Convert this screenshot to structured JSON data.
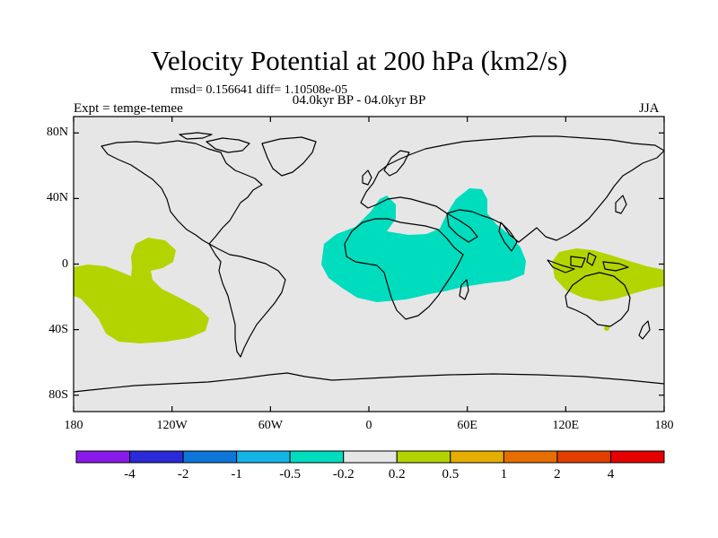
{
  "title": "Velocity Potential at 200 hPa (km2/s)",
  "stats": "rmsd= 0.156641 diff= 1.10508e-05",
  "period": "04.0kyr BP - 04.0kyr BP",
  "expt": "Expt = temge-temee",
  "season": "JJA",
  "map": {
    "lat_labels": [
      {
        "lat": 80,
        "text": "80N"
      },
      {
        "lat": 40,
        "text": "40N"
      },
      {
        "lat": 0,
        "text": "0"
      },
      {
        "lat": -40,
        "text": "40S"
      },
      {
        "lat": -80,
        "text": "80S"
      }
    ],
    "lon_labels": [
      {
        "lon": -180,
        "text": "180"
      },
      {
        "lon": -120,
        "text": "120W"
      },
      {
        "lon": -60,
        "text": "60W"
      },
      {
        "lon": 0,
        "text": "0"
      },
      {
        "lon": 60,
        "text": "60E"
      },
      {
        "lon": 120,
        "text": "120E"
      },
      {
        "lon": 180,
        "text": "180"
      }
    ],
    "background_color": "#e6e6e6",
    "regions": [
      {
        "name": "positive-region-pacific",
        "color": "#b4d400",
        "level": "0.2 to 0.5"
      },
      {
        "name": "negative-region-africa",
        "color": "#00dcbe",
        "level": "-0.5 to -0.2"
      },
      {
        "name": "positive-region-maritime",
        "color": "#b4d400",
        "level": "0.2 to 0.5"
      }
    ]
  },
  "colorbar": {
    "colors": [
      "#8a1aea",
      "#2a2ad8",
      "#0e76d8",
      "#12b4e6",
      "#00dcbe",
      "#e6e6e6",
      "#b4d400",
      "#e6ae00",
      "#e66e00",
      "#e23e00",
      "#e60000"
    ],
    "labels": [
      "-4",
      "-2",
      "-1",
      "-0.5",
      "-0.2",
      "0.2",
      "0.5",
      "1",
      "2",
      "4"
    ]
  }
}
